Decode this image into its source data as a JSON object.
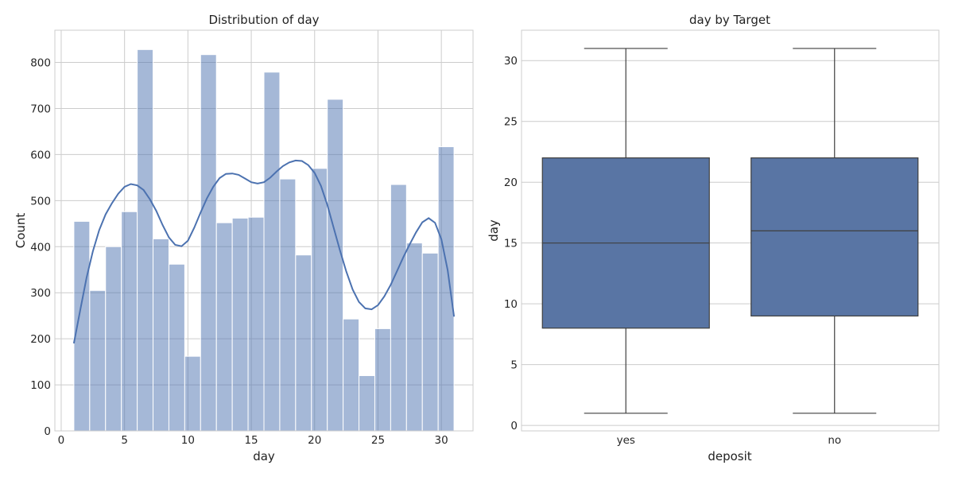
{
  "chart_data": [
    {
      "type": "histogram",
      "title": "Distribution of day",
      "xlabel": "day",
      "ylabel": "Count",
      "xlim": [
        -0.5,
        32.5
      ],
      "ylim": [
        0,
        870
      ],
      "xticks": [
        0,
        5,
        10,
        15,
        20,
        25,
        30
      ],
      "yticks": [
        0,
        100,
        200,
        300,
        400,
        500,
        600,
        700,
        800
      ],
      "grid": true,
      "bar_color": "#4c72b0",
      "bar_opacity": 0.5,
      "kde_color": "#4c72b0",
      "bins": [
        {
          "x0": 1.0,
          "x1": 2.25,
          "count": 455
        },
        {
          "x0": 2.25,
          "x1": 3.5,
          "count": 305
        },
        {
          "x0": 3.5,
          "x1": 4.75,
          "count": 400
        },
        {
          "x0": 4.75,
          "x1": 6.0,
          "count": 476
        },
        {
          "x0": 6.0,
          "x1": 7.25,
          "count": 828
        },
        {
          "x0": 7.25,
          "x1": 8.5,
          "count": 417
        },
        {
          "x0": 8.5,
          "x1": 9.75,
          "count": 362
        },
        {
          "x0": 9.75,
          "x1": 11.0,
          "count": 162
        },
        {
          "x0": 11.0,
          "x1": 12.25,
          "count": 817
        },
        {
          "x0": 12.25,
          "x1": 13.5,
          "count": 452
        },
        {
          "x0": 13.5,
          "x1": 14.75,
          "count": 462
        },
        {
          "x0": 14.75,
          "x1": 16.0,
          "count": 464
        },
        {
          "x0": 16.0,
          "x1": 17.25,
          "count": 779
        },
        {
          "x0": 17.25,
          "x1": 18.5,
          "count": 547
        },
        {
          "x0": 18.5,
          "x1": 19.75,
          "count": 382
        },
        {
          "x0": 19.75,
          "x1": 21.0,
          "count": 570
        },
        {
          "x0": 21.0,
          "x1": 22.25,
          "count": 720
        },
        {
          "x0": 22.25,
          "x1": 23.5,
          "count": 243
        },
        {
          "x0": 23.5,
          "x1": 24.75,
          "count": 120
        },
        {
          "x0": 24.75,
          "x1": 26.0,
          "count": 222
        },
        {
          "x0": 26.0,
          "x1": 27.25,
          "count": 535
        },
        {
          "x0": 27.25,
          "x1": 28.5,
          "count": 408
        },
        {
          "x0": 28.5,
          "x1": 29.75,
          "count": 386
        },
        {
          "x0": 29.75,
          "x1": 31.0,
          "count": 617
        }
      ],
      "kde": {
        "x": [
          1.0,
          1.5,
          2.0,
          2.5,
          3.0,
          3.5,
          4.0,
          4.5,
          5.0,
          5.5,
          6.0,
          6.5,
          7.0,
          7.5,
          8.0,
          8.5,
          9.0,
          9.5,
          10.0,
          10.5,
          11.0,
          11.5,
          12.0,
          12.5,
          13.0,
          13.5,
          14.0,
          14.5,
          15.0,
          15.5,
          16.0,
          16.5,
          17.0,
          17.5,
          18.0,
          18.5,
          19.0,
          19.5,
          20.0,
          20.5,
          21.0,
          21.5,
          22.0,
          22.5,
          23.0,
          23.5,
          24.0,
          24.5,
          25.0,
          25.5,
          26.0,
          26.5,
          27.0,
          27.5,
          28.0,
          28.5,
          29.0,
          29.5,
          30.0,
          30.5,
          31.0
        ],
        "y": [
          190,
          262,
          332,
          390,
          436,
          470,
          494,
          515,
          530,
          536,
          533,
          523,
          503,
          478,
          447,
          420,
          404,
          401,
          413,
          441,
          474,
          505,
          530,
          549,
          558,
          559,
          556,
          548,
          540,
          537,
          540,
          550,
          563,
          575,
          583,
          587,
          586,
          577,
          560,
          532,
          491,
          441,
          392,
          346,
          307,
          280,
          266,
          264,
          273,
          292,
          317,
          347,
          377,
          405,
          431,
          453,
          462,
          452,
          416,
          349,
          248
        ]
      }
    },
    {
      "type": "box",
      "title": "day by Target",
      "xlabel": "deposit",
      "ylabel": "day",
      "ylim": [
        -0.45,
        32.5
      ],
      "yticks": [
        0,
        5,
        10,
        15,
        20,
        25,
        30
      ],
      "grid": true,
      "box_color": "#5975a4",
      "line_color": "#3f3f3f",
      "categories": [
        "yes",
        "no"
      ],
      "boxes": [
        {
          "label": "yes",
          "min": 1,
          "q1": 8,
          "median": 15,
          "q3": 22,
          "max": 31
        },
        {
          "label": "no",
          "min": 1,
          "q1": 9,
          "median": 16,
          "q3": 22,
          "max": 31
        }
      ]
    }
  ]
}
